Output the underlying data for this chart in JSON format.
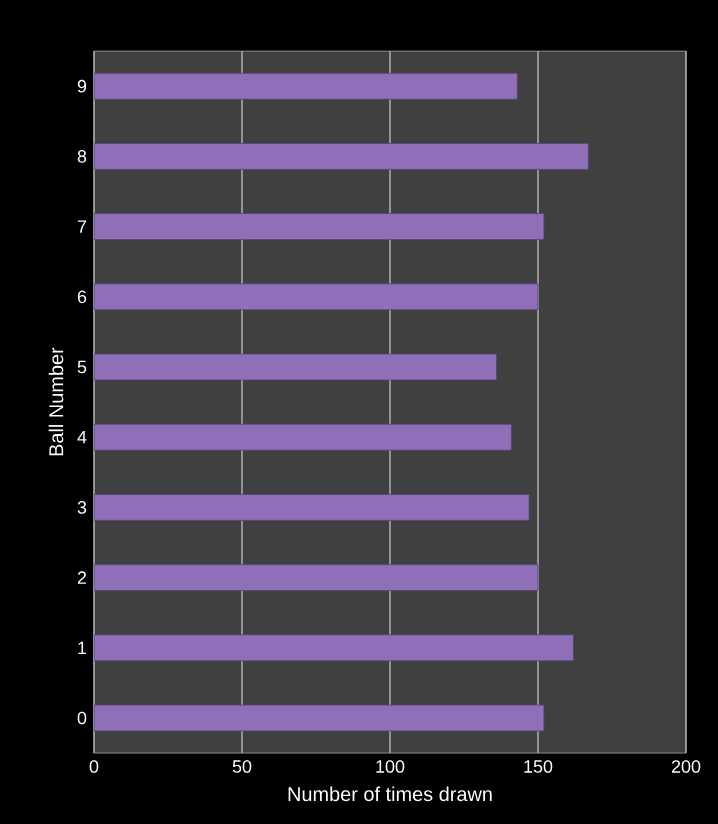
{
  "chart_data": {
    "type": "bar",
    "orientation": "horizontal",
    "xlabel": "Number  of times drawn",
    "ylabel": "Ball Number",
    "categories": [
      "9",
      "8",
      "7",
      "6",
      "5",
      "4",
      "3",
      "2",
      "1",
      "0"
    ],
    "values": [
      143,
      167,
      152,
      150,
      136,
      141,
      147,
      150,
      162,
      152
    ],
    "color": "#8e6fb8",
    "xlim": [
      0,
      200
    ],
    "xticks": [
      0,
      50,
      100,
      150,
      200
    ],
    "grid": "x"
  }
}
